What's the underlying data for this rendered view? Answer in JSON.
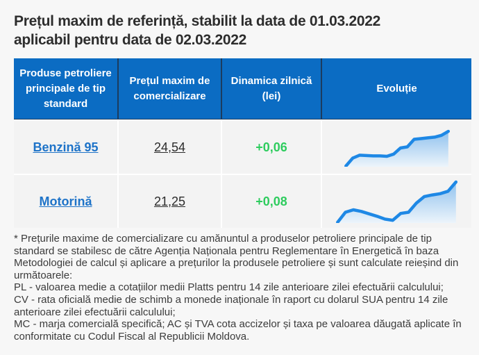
{
  "page": {
    "title_lines": [
      "Prețul maxim de referință, stabilit la data de 01.03.2022",
      "aplicabil pentru data de 02.03.2022"
    ]
  },
  "table": {
    "headers": [
      "Produse petroliere principale de tip standard",
      "Prețul maxim de comercializare",
      "Dinamica zilnică (lei)",
      "Evoluție"
    ],
    "rows": [
      {
        "product": "Benzină 95",
        "price": "24,54",
        "delta": "+0,06"
      },
      {
        "product": "Motorină",
        "price": "21,25",
        "delta": "+0,08"
      }
    ]
  },
  "footnote": {
    "paragraphs": [
      "* Prețurile maxime de comercializare cu amănuntul a produselor petroliere principale de tip standard se stabilesc de către Agenția Naționala pentru Reglementare în Energetică în baza Metodologiei de calcul și aplicare a prețurilor la produsele petroliere și sunt calculate reieșind din următoarele:",
      "PL - valoarea medie a cotațiilor medii Platts pentru 14 zile anterioare zilei efectuării calculului;",
      "CV - rata oficială medie de schimb a monede inaționale în raport cu dolarul SUA pentru 14 zile anterioare zilei efectuării calculului;",
      "MC - marja comercială specifică; AC și TVA cota accizelor și taxa pe valoarea dăugată aplicate în conformitate cu Codul Fiscal al Republicii Moldova."
    ]
  },
  "colors": {
    "header_bg": "#0b6cc3",
    "header_divider": "#1c3c5e",
    "cell_bg": "#f3f3f3",
    "page_bg": "#f7f7f7",
    "link_blue": "#1e73c8",
    "delta_green": "#2ecc5e",
    "spark_line": "#1e88e5",
    "spark_fill_top": "#90c2ee",
    "spark_fill_bottom": "#ecf4fb",
    "text_dark": "#2d2d2d"
  },
  "chart_data": [
    {
      "type": "area",
      "name": "Benzină 95 — Evoluție",
      "values": [
        0,
        22,
        30,
        29,
        28,
        28,
        27,
        33,
        50,
        53,
        74,
        76,
        78,
        80,
        85,
        96
      ],
      "ylim": [
        0,
        100
      ],
      "title": "",
      "xlabel": "",
      "ylabel": "",
      "grid": false,
      "legend": false
    },
    {
      "type": "area",
      "name": "Motorină — Evoluție",
      "values": [
        0,
        25,
        31,
        27,
        21,
        15,
        8,
        5,
        22,
        25,
        48,
        64,
        68,
        71,
        77,
        100
      ],
      "ylim": [
        0,
        100
      ],
      "title": "",
      "xlabel": "",
      "ylabel": "",
      "grid": false,
      "legend": false
    }
  ]
}
